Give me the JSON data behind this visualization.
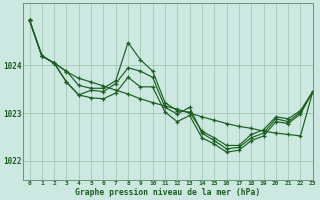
{
  "bg_color": "#cce8e0",
  "grid_color": "#aaccbb",
  "line_color": "#1a5e20",
  "xlabel": "Graphe pression niveau de la mer (hPa)",
  "xlim": [
    -0.5,
    23
  ],
  "ylim": [
    1021.6,
    1025.3
  ],
  "yticks": [
    1022,
    1023,
    1024
  ],
  "xticks": [
    0,
    1,
    2,
    3,
    4,
    5,
    6,
    7,
    8,
    9,
    10,
    11,
    12,
    13,
    14,
    15,
    16,
    17,
    18,
    19,
    20,
    21,
    22,
    23
  ],
  "series": [
    {
      "x": [
        0,
        1,
        2,
        3,
        4,
        5,
        6,
        7,
        8,
        9,
        10,
        11,
        12,
        13,
        14,
        15,
        16,
        17,
        18,
        19,
        20,
        21,
        22,
        23
      ],
      "y": [
        1024.95,
        1024.2,
        1024.05,
        1023.87,
        1023.73,
        1023.65,
        1023.57,
        1023.48,
        1023.4,
        1023.3,
        1023.22,
        1023.15,
        1023.08,
        1023.0,
        1022.92,
        1022.85,
        1022.78,
        1022.72,
        1022.68,
        1022.62,
        1022.58,
        1022.55,
        1022.52,
        1023.45
      ]
    },
    {
      "x": [
        0,
        1,
        2,
        3,
        4,
        5,
        6,
        7,
        8,
        9,
        10,
        11,
        12,
        13,
        14,
        15,
        16,
        17,
        18,
        19,
        20,
        21,
        22,
        23
      ],
      "y": [
        1024.95,
        1024.2,
        1024.05,
        1023.88,
        1023.58,
        1023.52,
        1023.52,
        1023.68,
        1024.48,
        1024.12,
        1023.88,
        1023.22,
        1023.05,
        1023.02,
        1022.62,
        1022.48,
        1022.32,
        1022.32,
        1022.55,
        1022.65,
        1022.92,
        1022.88,
        1023.05,
        1023.45
      ]
    },
    {
      "x": [
        0,
        1,
        2,
        3,
        4,
        5,
        6,
        7,
        8,
        9,
        10,
        11,
        12,
        13,
        14,
        15,
        16,
        17,
        18,
        19,
        20,
        21,
        22,
        23
      ],
      "y": [
        1024.95,
        1024.2,
        1024.05,
        1023.65,
        1023.38,
        1023.48,
        1023.45,
        1023.62,
        1023.95,
        1023.88,
        1023.75,
        1023.12,
        1022.98,
        1023.12,
        1022.58,
        1022.42,
        1022.25,
        1022.28,
        1022.48,
        1022.58,
        1022.88,
        1022.82,
        1023.02,
        1023.45
      ]
    },
    {
      "x": [
        0,
        1,
        2,
        3,
        4,
        5,
        6,
        7,
        8,
        9,
        10,
        11,
        12,
        13,
        14,
        15,
        16,
        17,
        18,
        19,
        20,
        21,
        22,
        23
      ],
      "y": [
        1024.95,
        1024.2,
        1024.05,
        1023.65,
        1023.38,
        1023.32,
        1023.3,
        1023.42,
        1023.75,
        1023.55,
        1023.55,
        1023.02,
        1022.82,
        1022.95,
        1022.48,
        1022.35,
        1022.18,
        1022.22,
        1022.42,
        1022.52,
        1022.82,
        1022.78,
        1022.98,
        1023.45
      ]
    }
  ]
}
